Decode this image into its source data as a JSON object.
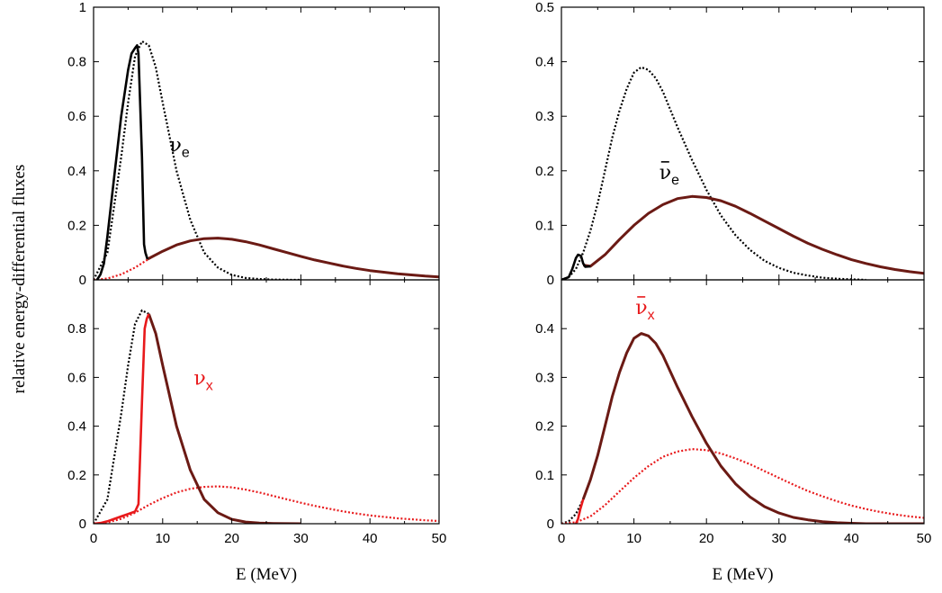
{
  "figure": {
    "ylabel": "relative energy-differential fluxes",
    "xlabel": "E (MeV)"
  },
  "colors": {
    "black": "#000000",
    "red": "#e8191b",
    "darkred": "#6b1a14"
  },
  "chart_data": [
    {
      "type": "line",
      "position": "top-left",
      "xlim": [
        0,
        50
      ],
      "ylim": [
        0,
        1
      ],
      "x_ticks": [
        "0",
        "10",
        "20",
        "30",
        "40",
        "50"
      ],
      "y_ticks": [
        "0",
        "0.2",
        "0.4",
        "0.6",
        "0.8",
        "1"
      ],
      "show_x_tick_labels": false,
      "annotation": {
        "text": "ν",
        "sub": "e",
        "bar": false,
        "color": "#000000",
        "x": 11.0,
        "y": 0.47
      },
      "series": [
        {
          "style": "dotted-black",
          "x": [
            0,
            2,
            4,
            5,
            6,
            7,
            8,
            9,
            10,
            12,
            14,
            16,
            18,
            20,
            22,
            24,
            26,
            28,
            30
          ],
          "y": [
            0,
            0.1,
            0.45,
            0.65,
            0.82,
            0.875,
            0.86,
            0.78,
            0.65,
            0.4,
            0.22,
            0.1,
            0.045,
            0.018,
            0.007,
            0.003,
            0.001,
            0.0004,
            0
          ]
        },
        {
          "style": "dotted-red",
          "x": [
            0,
            2,
            4,
            6,
            8,
            10,
            12,
            14,
            16,
            18,
            20,
            22,
            24,
            26,
            28,
            30,
            32,
            34,
            36,
            38,
            40,
            42,
            44,
            46,
            48,
            50
          ],
          "y": [
            0,
            0.005,
            0.02,
            0.045,
            0.077,
            0.105,
            0.128,
            0.143,
            0.151,
            0.153,
            0.149,
            0.14,
            0.128,
            0.114,
            0.1,
            0.086,
            0.073,
            0.062,
            0.051,
            0.042,
            0.034,
            0.028,
            0.022,
            0.018,
            0.014,
            0.011
          ]
        },
        {
          "style": "solid-darkred",
          "x": [
            7.8,
            10,
            12,
            14,
            16,
            18,
            20,
            22,
            24,
            26,
            28,
            30,
            32,
            34,
            36,
            38,
            40,
            42,
            44,
            46,
            48,
            50
          ],
          "y": [
            0.076,
            0.105,
            0.128,
            0.143,
            0.151,
            0.153,
            0.149,
            0.14,
            0.128,
            0.114,
            0.1,
            0.086,
            0.073,
            0.062,
            0.051,
            0.042,
            0.034,
            0.028,
            0.022,
            0.018,
            0.014,
            0.011
          ]
        },
        {
          "style": "solid-black",
          "x": [
            0.5,
            1,
            1.5,
            2,
            3,
            4,
            5,
            5.5,
            6,
            6.3,
            6.5,
            7,
            7.3,
            7.5,
            7.8
          ],
          "y": [
            0,
            0.02,
            0.06,
            0.16,
            0.38,
            0.6,
            0.77,
            0.83,
            0.85,
            0.86,
            0.83,
            0.45,
            0.13,
            0.1,
            0.076
          ]
        }
      ]
    },
    {
      "type": "line",
      "position": "top-right",
      "xlim": [
        0,
        50
      ],
      "ylim": [
        0,
        0.5
      ],
      "x_ticks": [
        "0",
        "10",
        "20",
        "30",
        "40",
        "50"
      ],
      "y_ticks": [
        "0",
        "0.1",
        "0.2",
        "0.3",
        "0.4",
        "0.5"
      ],
      "show_x_tick_labels": false,
      "annotation": {
        "text": "ν",
        "sub": "e",
        "bar": true,
        "color": "#000000",
        "x": 13.5,
        "y": 0.185
      },
      "series": [
        {
          "style": "dotted-black",
          "x": [
            0,
            1,
            2,
            3,
            4,
            5,
            6,
            7,
            8,
            9,
            10,
            11,
            12,
            13,
            14,
            16,
            18,
            20,
            22,
            24,
            26,
            28,
            30,
            32,
            34,
            36,
            38,
            40,
            42
          ],
          "y": [
            0,
            0.005,
            0.02,
            0.05,
            0.09,
            0.14,
            0.2,
            0.26,
            0.31,
            0.35,
            0.38,
            0.39,
            0.385,
            0.37,
            0.345,
            0.28,
            0.22,
            0.165,
            0.118,
            0.082,
            0.055,
            0.035,
            0.022,
            0.013,
            0.008,
            0.004,
            0.002,
            0.001,
            0
          ]
        },
        {
          "style": "solid-darkred",
          "x": [
            3,
            4,
            6,
            8,
            10,
            12,
            14,
            16,
            18,
            20,
            22,
            24,
            26,
            28,
            30,
            32,
            34,
            36,
            38,
            40,
            42,
            44,
            46,
            48,
            50
          ],
          "y": [
            0.027,
            0.025,
            0.046,
            0.074,
            0.1,
            0.122,
            0.138,
            0.149,
            0.153,
            0.151,
            0.145,
            0.135,
            0.122,
            0.108,
            0.094,
            0.08,
            0.067,
            0.056,
            0.046,
            0.037,
            0.03,
            0.024,
            0.019,
            0.015,
            0.012
          ]
        },
        {
          "style": "solid-black",
          "x": [
            0,
            1,
            1.5,
            2,
            2.3,
            2.7,
            3,
            3.3,
            4
          ],
          "y": [
            0,
            0.005,
            0.02,
            0.04,
            0.046,
            0.044,
            0.03,
            0.024,
            0.025
          ]
        }
      ]
    },
    {
      "type": "line",
      "position": "bottom-left",
      "xlim": [
        0,
        50
      ],
      "ylim": [
        0,
        1
      ],
      "x_ticks": [
        "0",
        "10",
        "20",
        "30",
        "40",
        "50"
      ],
      "y_ticks": [
        "0",
        "0.2",
        "0.4",
        "0.6",
        "0.8"
      ],
      "show_x_tick_labels": true,
      "xlabel": "E (MeV)",
      "annotation": {
        "text": "ν",
        "sub": "x",
        "bar": false,
        "color": "#e8191b",
        "x": 14.5,
        "y": 0.57
      },
      "series": [
        {
          "style": "dotted-black",
          "x": [
            0,
            2,
            4,
            5,
            6,
            7,
            8,
            9,
            10,
            12,
            14,
            16,
            18,
            20,
            22,
            24,
            26,
            28,
            30
          ],
          "y": [
            0,
            0.1,
            0.45,
            0.65,
            0.82,
            0.875,
            0.86,
            0.78,
            0.65,
            0.4,
            0.22,
            0.1,
            0.045,
            0.018,
            0.007,
            0.003,
            0.001,
            0.0004,
            0
          ]
        },
        {
          "style": "dotted-red",
          "x": [
            0,
            2,
            4,
            6,
            8,
            10,
            12,
            14,
            16,
            18,
            20,
            22,
            24,
            26,
            28,
            30,
            32,
            34,
            36,
            38,
            40,
            42,
            44,
            46,
            48,
            50
          ],
          "y": [
            0,
            0.005,
            0.02,
            0.045,
            0.077,
            0.105,
            0.128,
            0.143,
            0.151,
            0.153,
            0.149,
            0.14,
            0.128,
            0.114,
            0.1,
            0.086,
            0.073,
            0.062,
            0.051,
            0.042,
            0.034,
            0.028,
            0.022,
            0.018,
            0.014,
            0.011
          ]
        },
        {
          "style": "solid-darkred",
          "x": [
            8,
            9,
            10,
            12,
            14,
            16,
            18,
            20,
            22,
            24,
            26,
            28,
            30
          ],
          "y": [
            0.86,
            0.78,
            0.65,
            0.4,
            0.22,
            0.1,
            0.045,
            0.018,
            0.007,
            0.003,
            0.001,
            0.0004,
            0
          ]
        },
        {
          "style": "solid-red",
          "x": [
            0,
            1,
            2,
            3,
            4,
            5,
            6,
            6.5,
            7,
            7.4,
            7.7,
            8
          ],
          "y": [
            0,
            0.003,
            0.01,
            0.02,
            0.03,
            0.04,
            0.05,
            0.08,
            0.5,
            0.8,
            0.84,
            0.86
          ]
        }
      ]
    },
    {
      "type": "line",
      "position": "bottom-right",
      "xlim": [
        0,
        50
      ],
      "ylim": [
        0,
        0.5
      ],
      "x_ticks": [
        "0",
        "10",
        "20",
        "30",
        "40",
        "50"
      ],
      "y_ticks": [
        "0",
        "0.1",
        "0.2",
        "0.3",
        "0.4"
      ],
      "show_x_tick_labels": true,
      "xlabel": "E (MeV)",
      "annotation": {
        "text": "ν",
        "sub": "x",
        "bar": true,
        "color": "#e8191b",
        "x": 10.2,
        "y": 0.43
      },
      "series": [
        {
          "style": "dotted-black",
          "x": [
            0,
            1,
            2,
            3,
            4,
            5,
            6,
            7,
            8,
            9,
            10,
            11,
            12,
            13,
            14,
            16,
            18,
            20,
            22,
            24,
            26,
            28,
            30,
            32,
            34,
            36,
            38,
            40,
            42
          ],
          "y": [
            0,
            0.005,
            0.02,
            0.05,
            0.09,
            0.14,
            0.2,
            0.26,
            0.31,
            0.35,
            0.38,
            0.39,
            0.385,
            0.37,
            0.345,
            0.28,
            0.22,
            0.165,
            0.118,
            0.082,
            0.055,
            0.035,
            0.022,
            0.013,
            0.008,
            0.004,
            0.002,
            0.001,
            0
          ]
        },
        {
          "style": "dotted-red",
          "x": [
            0,
            2,
            4,
            6,
            8,
            10,
            12,
            14,
            16,
            18,
            20,
            22,
            24,
            26,
            28,
            30,
            32,
            34,
            36,
            38,
            40,
            42,
            44,
            46,
            48,
            50
          ],
          "y": [
            0,
            0.003,
            0.015,
            0.038,
            0.066,
            0.094,
            0.118,
            0.137,
            0.148,
            0.153,
            0.151,
            0.144,
            0.134,
            0.122,
            0.108,
            0.094,
            0.08,
            0.067,
            0.056,
            0.046,
            0.037,
            0.03,
            0.024,
            0.019,
            0.015,
            0.012
          ]
        },
        {
          "style": "solid-darkred",
          "x": [
            3,
            4,
            5,
            6,
            7,
            8,
            9,
            10,
            11,
            12,
            13,
            14,
            16,
            18,
            20,
            22,
            24,
            26,
            28,
            30,
            32,
            34,
            36,
            38,
            40,
            42,
            44,
            46,
            48,
            50
          ],
          "y": [
            0.05,
            0.09,
            0.14,
            0.2,
            0.26,
            0.31,
            0.35,
            0.38,
            0.39,
            0.385,
            0.37,
            0.345,
            0.28,
            0.22,
            0.165,
            0.118,
            0.082,
            0.055,
            0.035,
            0.022,
            0.013,
            0.008,
            0.004,
            0.002,
            0.001,
            0,
            0,
            0,
            0,
            0
          ]
        },
        {
          "style": "solid-red",
          "x": [
            2,
            2.3,
            2.6,
            3
          ],
          "y": [
            0,
            0.01,
            0.03,
            0.05
          ]
        }
      ]
    }
  ]
}
